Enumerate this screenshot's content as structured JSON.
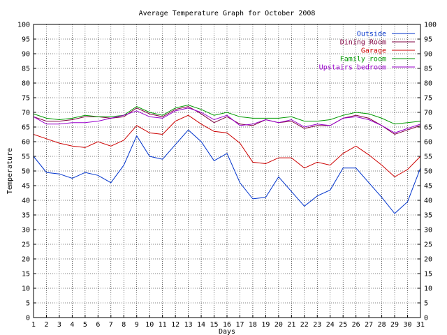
{
  "chart_data": {
    "type": "line",
    "title": "Average Temperature Graph for October 2008",
    "xlabel": "Days",
    "ylabel": "Temperature",
    "xlim": [
      1,
      31
    ],
    "ylim": [
      0,
      100
    ],
    "y_ticks": [
      0,
      5,
      10,
      15,
      20,
      25,
      30,
      35,
      40,
      45,
      50,
      55,
      60,
      65,
      70,
      75,
      80,
      85,
      90,
      95,
      100
    ],
    "x": [
      1,
      2,
      3,
      4,
      5,
      6,
      7,
      8,
      9,
      10,
      11,
      12,
      13,
      14,
      15,
      16,
      17,
      18,
      19,
      20,
      21,
      22,
      23,
      24,
      25,
      26,
      27,
      28,
      29,
      30,
      31
    ],
    "grid": true,
    "legend_position": "top-right",
    "series": [
      {
        "name": "Outside",
        "color": "#0033cc",
        "values": [
          55,
          49.5,
          49,
          47.5,
          49.5,
          48.5,
          46,
          52,
          62,
          55,
          54,
          59,
          64,
          60,
          53.5,
          56,
          46,
          40.5,
          41,
          48,
          43,
          38,
          41.5,
          43.5,
          51,
          51,
          46,
          41,
          35.5,
          39.5,
          51
        ]
      },
      {
        "name": "Dining Room",
        "color": "#800040",
        "values": [
          68.5,
          67,
          67,
          67.5,
          68.5,
          68.5,
          68,
          68.5,
          71.5,
          69.5,
          68.5,
          71,
          72,
          69.5,
          66.5,
          68.5,
          66,
          65.5,
          67.5,
          66.5,
          67,
          64.5,
          65.5,
          65.5,
          68,
          69,
          68,
          65.5,
          62.5,
          64,
          65.5
        ]
      },
      {
        "name": "Garage",
        "color": "#cc0000",
        "values": [
          62.5,
          61,
          59.5,
          58.5,
          58,
          60,
          58.5,
          60.5,
          65.5,
          63,
          62.5,
          67,
          69,
          66,
          63.5,
          63,
          59.5,
          53,
          52.5,
          54.5,
          54.5,
          51,
          53,
          52,
          56,
          58.5,
          55.5,
          52,
          48,
          50.5,
          55
        ]
      },
      {
        "name": "Family room",
        "color": "#009900",
        "values": [
          69.5,
          68,
          67.5,
          68,
          69,
          68.5,
          68.5,
          69,
          72,
          70,
          69,
          71.5,
          72.5,
          71,
          69,
          70,
          68.5,
          68,
          68,
          68,
          68.5,
          67,
          67,
          67.5,
          69,
          70,
          69.5,
          68,
          66,
          66.5,
          67
        ]
      },
      {
        "name": "Upstairs bedroom",
        "color": "#9900cc",
        "values": [
          68.5,
          66,
          66,
          66.5,
          66.5,
          67,
          68,
          69,
          70.5,
          68.5,
          68,
          70.5,
          71.5,
          70,
          67.5,
          69,
          65.5,
          66,
          67.5,
          66.5,
          67.5,
          65,
          66,
          65.5,
          68,
          68.5,
          67.5,
          65.5,
          63,
          64.5,
          66
        ]
      }
    ]
  }
}
